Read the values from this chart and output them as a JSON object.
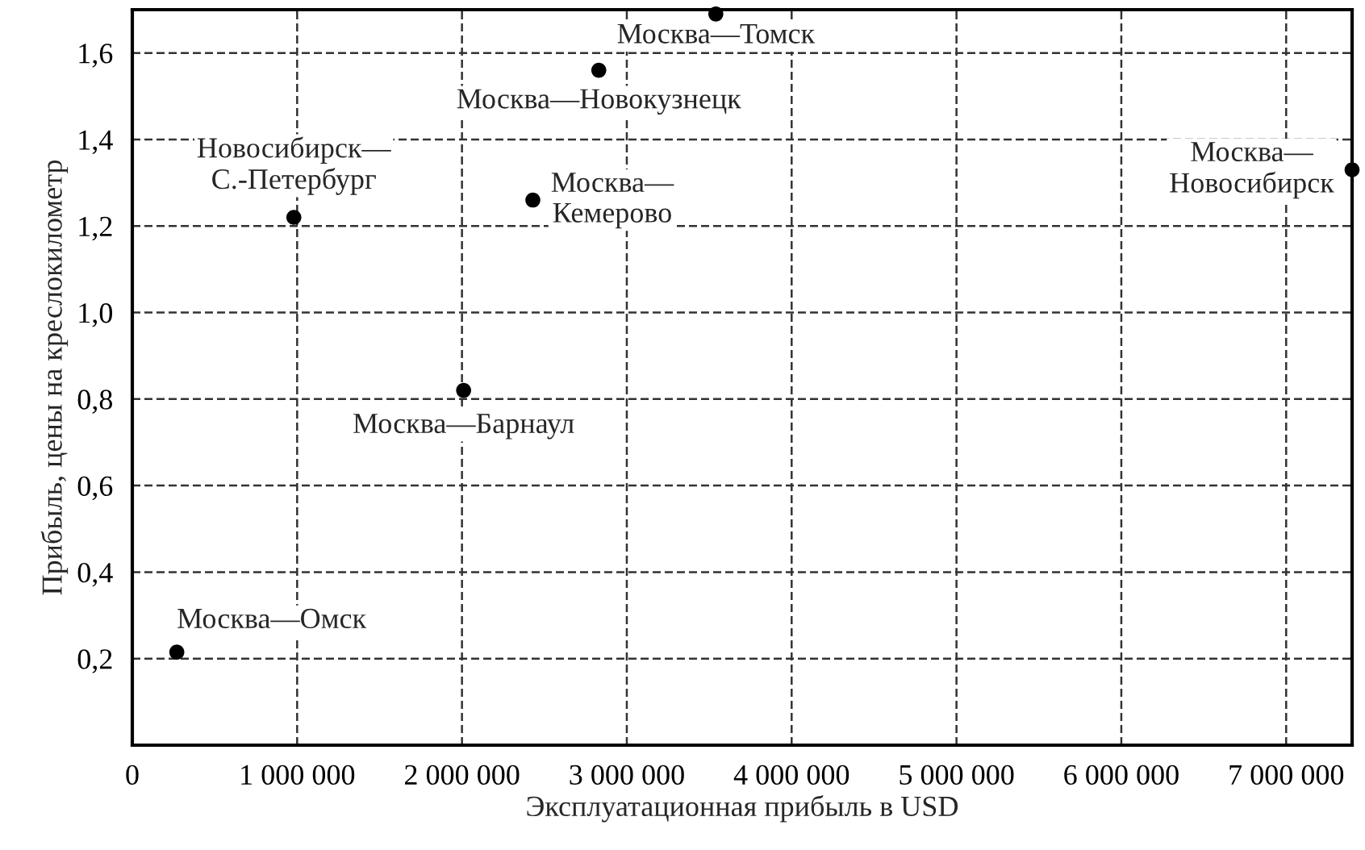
{
  "chart_data": {
    "type": "scatter",
    "xlabel": "Эксплуатационная прибыль в USD",
    "ylabel": "Прибыль, цены на креслокилометр",
    "x": [
      270000,
      980000,
      2010000,
      2430000,
      2830000,
      3540000,
      7400000
    ],
    "series": [
      {
        "color": "#000000",
        "values": [
          0.215,
          1.22,
          0.82,
          1.26,
          1.56,
          1.69,
          1.33
        ]
      }
    ],
    "annotations": [
      {
        "text": "Москва—Омск",
        "x": 270000,
        "y": 0.215
      },
      {
        "text": "Новосибирск—\nС.-Петербург",
        "x": 980000,
        "y": 1.22
      },
      {
        "text": "Москва—Барнаул",
        "x": 2010000,
        "y": 0.82
      },
      {
        "text": "Москва—\nКемерово",
        "x": 2430000,
        "y": 1.26
      },
      {
        "text": "Москва—Новокузнецк",
        "x": 2830000,
        "y": 1.56
      },
      {
        "text": "Москва—Томск",
        "x": 3540000,
        "y": 1.69
      },
      {
        "text": "Москва—\nНовосибирск",
        "x": 7400000,
        "y": 1.33
      }
    ],
    "xlim": [
      0,
      7400000
    ],
    "ylim": [
      0,
      1.7
    ],
    "xticks": [
      0,
      {
        "value": 1000000,
        "label": "1 000 000"
      },
      {
        "value": 2000000,
        "label": "2 000 000"
      },
      {
        "value": 3000000,
        "label": "3 000 000"
      },
      {
        "value": 4000000,
        "label": "4 000 000"
      },
      {
        "value": 5000000,
        "label": "5 000 000"
      },
      {
        "value": 6000000,
        "label": "6 000 000"
      },
      {
        "value": 7000000,
        "label": "7 000 000"
      }
    ],
    "yticks": [
      {
        "value": 0.2,
        "label": "0,2"
      },
      {
        "value": 0.4,
        "label": "0,4"
      },
      {
        "value": 0.6,
        "label": "0,6"
      },
      {
        "value": 0.8,
        "label": "0,8"
      },
      {
        "value": 1.0,
        "label": "1,0"
      },
      {
        "value": 1.2,
        "label": "1,2"
      },
      {
        "value": 1.4,
        "label": "1,4"
      },
      {
        "value": 1.6,
        "label": "1,6"
      }
    ],
    "grid": true,
    "marker": "circle"
  }
}
